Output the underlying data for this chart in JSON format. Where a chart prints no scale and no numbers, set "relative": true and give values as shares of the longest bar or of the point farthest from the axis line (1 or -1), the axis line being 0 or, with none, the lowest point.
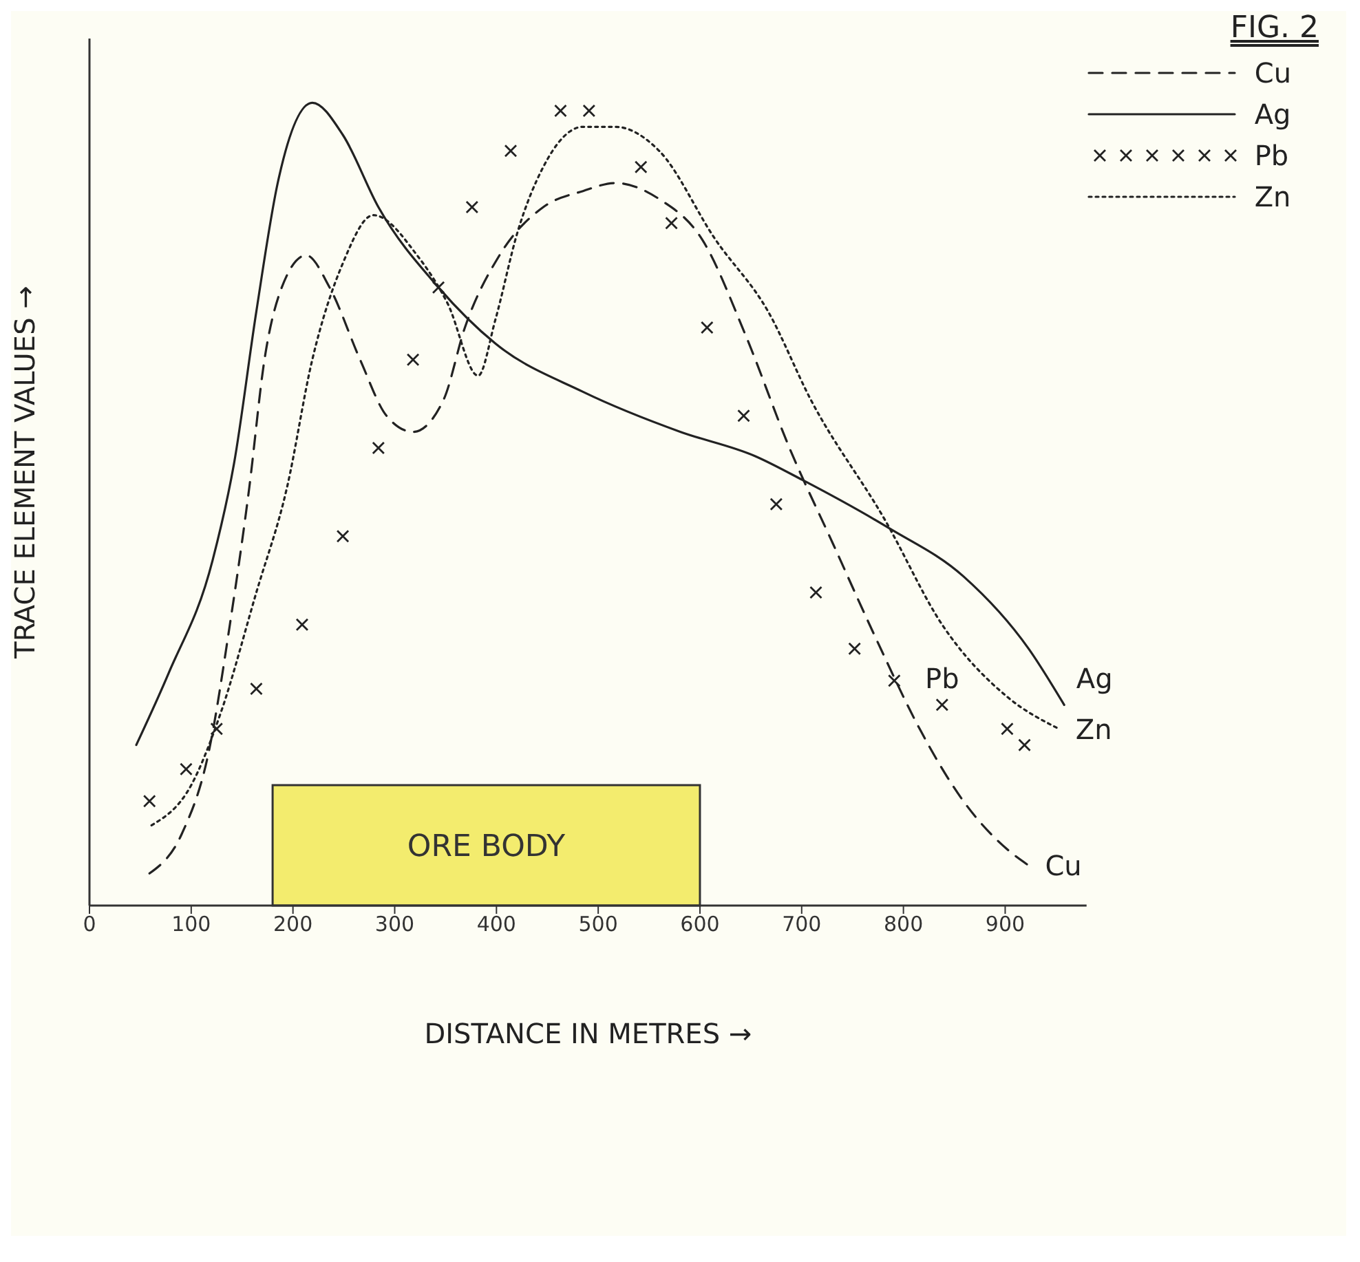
{
  "chart_data": {
    "type": "line",
    "relative": true,
    "xlabel": "DISTANCE IN METRES →",
    "ylabel": "TRACE ELEMENT VALUES →",
    "xlim": [
      0,
      980
    ],
    "xticks": [
      0,
      100,
      200,
      300,
      400,
      500,
      600,
      700,
      800,
      900
    ],
    "legend": "top right",
    "grid": false,
    "series": [
      {
        "name": "Cu",
        "color": "#222222",
        "line_style": "dashed",
        "marker": "none",
        "x": [
          59,
          91,
          117,
          138,
          157,
          172,
          189,
          213,
          236,
          266,
          292,
          318,
          348,
          369,
          403,
          446,
          485,
          517,
          560,
          602,
          645,
          688,
          731,
          774,
          816,
          859,
          902,
          923
        ],
        "values": [
          0.04,
          0.09,
          0.19,
          0.35,
          0.52,
          0.68,
          0.77,
          0.81,
          0.77,
          0.68,
          0.61,
          0.59,
          0.63,
          0.72,
          0.81,
          0.87,
          0.89,
          0.9,
          0.88,
          0.83,
          0.71,
          0.57,
          0.45,
          0.33,
          0.22,
          0.13,
          0.07,
          0.05
        ]
      },
      {
        "name": "Ag",
        "color": "#222222",
        "line_style": "solid",
        "marker": "none",
        "x": [
          46,
          78,
          121,
          142,
          164,
          185,
          219,
          249,
          284,
          343,
          399,
          485,
          581,
          654,
          701,
          786,
          859,
          923,
          958
        ],
        "values": [
          0.2,
          0.29,
          0.43,
          0.55,
          0.74,
          0.9,
          1,
          0.96,
          0.87,
          0.77,
          0.7,
          0.64,
          0.59,
          0.56,
          0.53,
          0.47,
          0.41,
          0.32,
          0.25
        ]
      },
      {
        "name": "Pb",
        "type": "scatter",
        "color": "#222222",
        "marker": "cross",
        "x": [
          59,
          95,
          125,
          164,
          209,
          249,
          284,
          318,
          343,
          376,
          414,
          463,
          491,
          542,
          572,
          607,
          643,
          675,
          714,
          752,
          791,
          838,
          902,
          919
        ],
        "values": [
          0.13,
          0.17,
          0.22,
          0.27,
          0.35,
          0.46,
          0.57,
          0.68,
          0.77,
          0.87,
          0.94,
          0.99,
          0.99,
          0.92,
          0.85,
          0.72,
          0.61,
          0.5,
          0.39,
          0.32,
          0.28,
          0.25,
          0.22,
          0.2
        ]
      },
      {
        "name": "Zn",
        "color": "#222222",
        "line_style": "dotted",
        "marker": "none",
        "x": [
          61,
          100,
          129,
          164,
          194,
          219,
          249,
          279,
          322,
          352,
          382,
          399,
          421,
          446,
          485,
          517,
          560,
          615,
          667,
          709,
          782,
          838,
          902,
          953
        ],
        "values": [
          0.1,
          0.15,
          0.24,
          0.39,
          0.52,
          0.68,
          0.8,
          0.86,
          0.81,
          0.75,
          0.66,
          0.73,
          0.84,
          0.92,
          0.97,
          0.97,
          0.94,
          0.83,
          0.74,
          0.63,
          0.48,
          0.35,
          0.26,
          0.22
        ]
      }
    ],
    "bands": [
      {
        "axis": "x",
        "from": 180,
        "to": 600,
        "label": "ORE BODY",
        "color": "#f3ec6e"
      }
    ],
    "annotations": [
      "FIG. 2"
    ]
  }
}
